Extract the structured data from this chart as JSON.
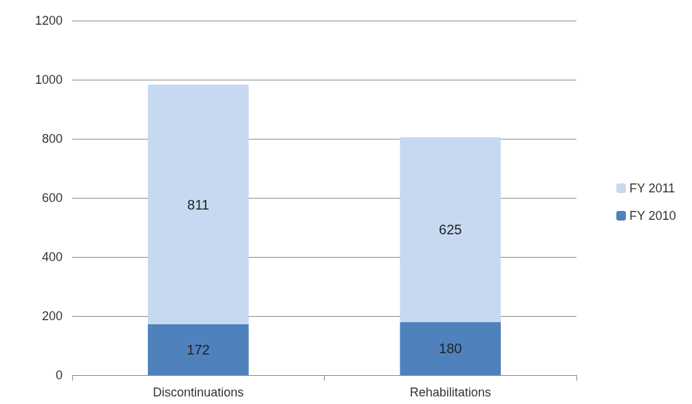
{
  "chart_data": {
    "type": "bar",
    "stacked": true,
    "data_labels": true,
    "grid": "y",
    "legend": "right",
    "categories": [
      "Discontinuations",
      "Rehabilitations"
    ],
    "series": [
      {
        "name": "FY 2010",
        "color": "#4f81bd",
        "values": [
          172,
          180
        ]
      },
      {
        "name": "FY 2011",
        "color": "#c6d9f1",
        "values": [
          811,
          625
        ]
      }
    ],
    "ylim": [
      0,
      1200
    ],
    "yticks": [
      0,
      200,
      400,
      600,
      800,
      1000,
      1200
    ]
  }
}
